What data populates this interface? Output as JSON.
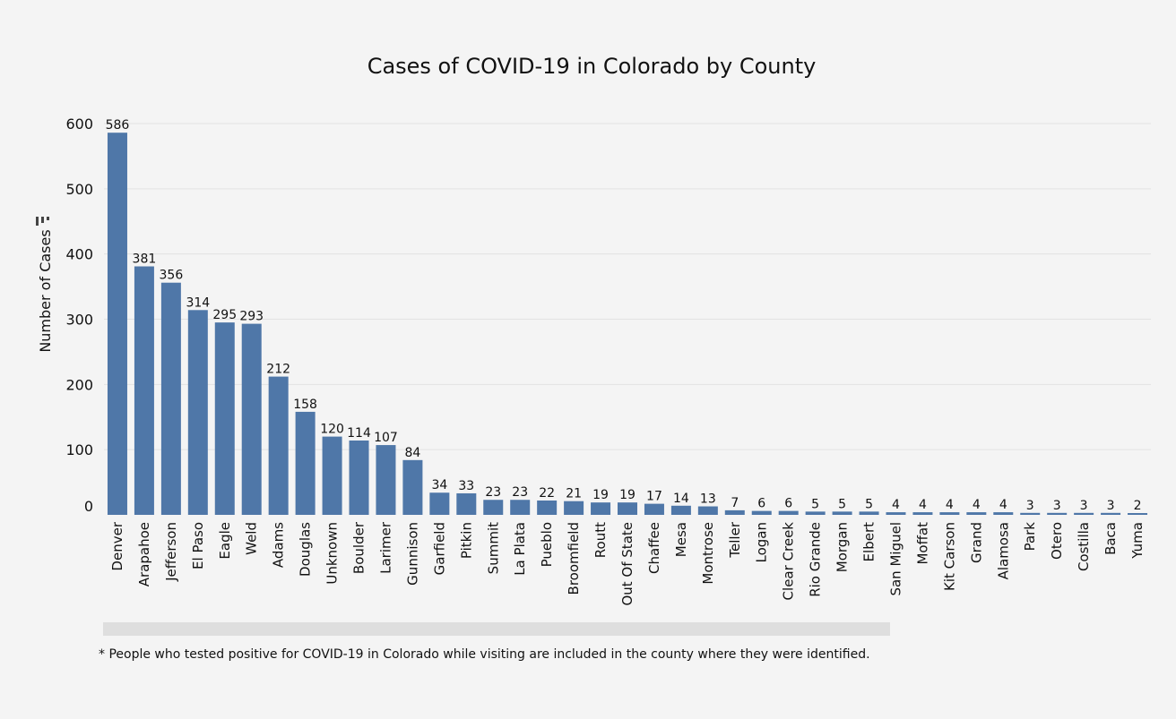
{
  "chart_data": {
    "type": "bar",
    "title": "Cases of COVID-19 in Colorado by County",
    "ylabel": "Number of Cases",
    "xlabel": "",
    "ylim": [
      0,
      600
    ],
    "yticks": [
      0,
      100,
      200,
      300,
      400,
      500,
      600
    ],
    "grid": true,
    "categories": [
      "Denver",
      "Arapahoe",
      "Jefferson",
      "El Paso",
      "Eagle",
      "Weld",
      "Adams",
      "Douglas",
      "Unknown",
      "Boulder",
      "Larimer",
      "Gunnison",
      "Garfield",
      "Pitkin",
      "Summit",
      "La Plata",
      "Pueblo",
      "Broomfield",
      "Routt",
      "Out Of State",
      "Chaffee",
      "Mesa",
      "Montrose",
      "Teller",
      "Logan",
      "Clear Creek",
      "Rio Grande",
      "Morgan",
      "Elbert",
      "San Miguel",
      "Moffat",
      "Kit Carson",
      "Grand",
      "Alamosa",
      "Park",
      "Otero",
      "Costilla",
      "Baca",
      "Yuma"
    ],
    "values": [
      586,
      381,
      356,
      314,
      295,
      293,
      212,
      158,
      120,
      114,
      107,
      84,
      34,
      33,
      23,
      23,
      22,
      21,
      19,
      19,
      17,
      14,
      13,
      7,
      6,
      6,
      5,
      5,
      5,
      4,
      4,
      4,
      4,
      4,
      3,
      3,
      3,
      3,
      2
    ],
    "bar_color": "#4f77a8"
  },
  "footnote": "* People who tested positive for COVID-19 in Colorado while visiting are included in the county where they were identified."
}
